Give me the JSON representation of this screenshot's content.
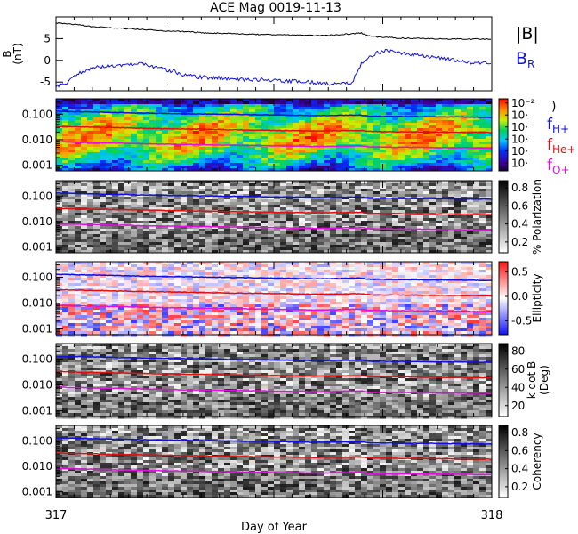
{
  "chart_data": {
    "title": "ACE Mag 0019-11-13",
    "xlabel": "Day of Year",
    "x_ticks": [
      "317",
      "318"
    ],
    "xlim": [
      317,
      318
    ],
    "panels": [
      {
        "name": "field",
        "type": "line",
        "ylabel": "B (nT)",
        "ylim": [
          -7,
          10
        ],
        "y_ticks": [
          -5,
          0,
          5
        ],
        "series": [
          {
            "name": "|B|",
            "color": "#000000",
            "x": [
              317.0,
              317.04,
              317.08,
              317.12,
              317.16,
              317.2,
              317.25,
              317.3,
              317.35,
              317.4,
              317.45,
              317.5,
              317.55,
              317.6,
              317.65,
              317.7,
              317.72,
              317.75,
              317.8,
              317.85,
              317.9,
              317.95,
              318.0
            ],
            "values": [
              8.6,
              8.3,
              7.8,
              7.5,
              7.3,
              7.1,
              6.8,
              6.6,
              6.3,
              6.2,
              6.0,
              5.9,
              5.8,
              5.7,
              5.9,
              6.3,
              5.6,
              5.3,
              5.1,
              5.0,
              4.9,
              4.9,
              4.9
            ]
          },
          {
            "name": "B_R",
            "color": "#1010e0",
            "x": [
              317.0,
              317.02,
              317.04,
              317.06,
              317.1,
              317.15,
              317.2,
              317.25,
              317.3,
              317.35,
              317.4,
              317.45,
              317.5,
              317.55,
              317.6,
              317.65,
              317.68,
              317.7,
              317.72,
              317.75,
              317.8,
              317.85,
              317.9,
              317.95,
              318.0
            ],
            "values": [
              -5.8,
              -5.5,
              -3.8,
              -2.5,
              -1.5,
              -1.0,
              -0.8,
              -2.0,
              -3.5,
              -4.0,
              -4.2,
              -4.4,
              -4.6,
              -4.8,
              -5.2,
              -5.5,
              -5.0,
              -1.0,
              1.0,
              2.2,
              1.5,
              0.8,
              0.3,
              -0.5,
              -0.8
            ]
          }
        ]
      },
      {
        "name": "power",
        "type": "heatmap",
        "colorbar": "rainbow",
        "colorbar_ticks": [
          "10⁻²",
          "10·",
          "10·",
          "10·",
          "10·",
          "10·"
        ],
        "yscale": "log",
        "ylim": [
          0.0006,
          0.4
        ],
        "y_ticks": [
          "0.100",
          "0.010",
          "0.001"
        ]
      },
      {
        "name": "polarization",
        "type": "heatmap",
        "colorbar": "gray",
        "colorbar_label": "% Polarization",
        "colorbar_ticks": [
          "0.8",
          "0.6",
          "0.4",
          "0.2"
        ],
        "yscale": "log",
        "ylim": [
          0.0006,
          0.4
        ],
        "y_ticks": [
          "0.100",
          "0.010",
          "0.001"
        ]
      },
      {
        "name": "ellipticity",
        "type": "heatmap",
        "colorbar": "blue-white-red",
        "colorbar_label": "Ellipticity",
        "colorbar_ticks": [
          "0.5",
          "0.0",
          "-0.5"
        ],
        "yscale": "log",
        "ylim": [
          0.0006,
          0.4
        ],
        "y_ticks": [
          "0.100",
          "0.010",
          "0.001"
        ]
      },
      {
        "name": "kdotb",
        "type": "heatmap",
        "colorbar": "gray",
        "colorbar_label": "k dot B (Deg)",
        "colorbar_ticks": [
          "80",
          "60",
          "40",
          "20"
        ],
        "yscale": "log",
        "ylim": [
          0.0006,
          0.4
        ],
        "y_ticks": [
          "0.100",
          "0.010",
          "0.001"
        ]
      },
      {
        "name": "coherency",
        "type": "heatmap",
        "colorbar": "gray",
        "colorbar_label": "Coherency",
        "colorbar_ticks": [
          "0.8",
          "0.6",
          "0.4",
          "0.2"
        ],
        "yscale": "log",
        "ylim": [
          0.0006,
          0.4
        ],
        "y_ticks": [
          "0.100",
          "0.010",
          "0.001"
        ]
      }
    ],
    "gyro_lines": [
      {
        "name": "fH+",
        "color": "#1010e0",
        "x": [
          317.0,
          317.2,
          317.4,
          317.6,
          317.7,
          317.72,
          318.0
        ],
        "values": [
          0.13,
          0.11,
          0.098,
          0.087,
          0.092,
          0.083,
          0.075
        ]
      },
      {
        "name": "fHe+",
        "color": "#e01010",
        "x": [
          317.0,
          317.2,
          317.4,
          317.6,
          317.7,
          317.72,
          318.0
        ],
        "values": [
          0.033,
          0.028,
          0.0245,
          0.022,
          0.023,
          0.021,
          0.019
        ]
      },
      {
        "name": "fO+",
        "color": "#e010e0",
        "x": [
          317.0,
          317.2,
          317.4,
          317.6,
          317.7,
          317.72,
          318.0
        ],
        "values": [
          0.0082,
          0.0069,
          0.0061,
          0.0054,
          0.0058,
          0.0052,
          0.0047
        ]
      }
    ],
    "legend": {
      "bmag": "|B|",
      "br_main": "B",
      "br_sub": "R",
      "fh_main": "f",
      "fh_sub": "H+",
      "fhe_main": "f",
      "fhe_sub": "He+",
      "fo_main": "f",
      "fo_sub": "O+",
      "power_paren": ")"
    }
  }
}
